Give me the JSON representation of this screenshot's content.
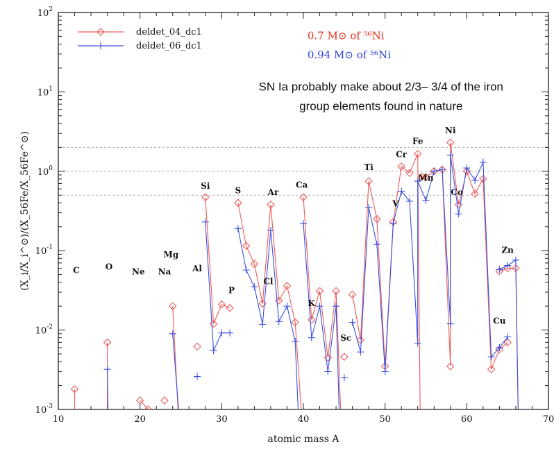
{
  "chart_data": {
    "type": "line",
    "xlabel": "atomic mass A",
    "ylabel": "(X_i/X_i^⊙)/(X_56Fe/X_56Fe^⊙)",
    "xlim": [
      10,
      70
    ],
    "ylim": [
      0.001,
      100
    ],
    "yscale": "log",
    "x_ticks": [
      "10",
      "20",
      "30",
      "40",
      "50",
      "60",
      "70"
    ],
    "y_ticks": [
      {
        "value": 0.001,
        "base": "10",
        "exp": "-3"
      },
      {
        "value": 0.01,
        "base": "10",
        "exp": "-2"
      },
      {
        "value": 0.1,
        "base": "10",
        "exp": "-1"
      },
      {
        "value": 1,
        "base": "10",
        "exp": "0"
      },
      {
        "value": 10,
        "base": "10",
        "exp": "1"
      },
      {
        "value": 100,
        "base": "10",
        "exp": "2"
      }
    ],
    "reference_lines": [
      0.5,
      1,
      2
    ],
    "legend": {
      "placement": "top-left",
      "entries": [
        {
          "name": "deldet_04_dc1",
          "color": "#ee5a5a",
          "marker": "diamond"
        },
        {
          "name": "deldet_06_dc1",
          "color": "#3a4fe0",
          "marker": "plus"
        }
      ]
    },
    "annotations": [
      {
        "text": "0.7 M⊙ of ⁵⁶Ni",
        "color": "#e5301c",
        "pos": [
          40.5,
          46
        ]
      },
      {
        "text": "0.94 M⊙ of ⁵⁶Ni",
        "color": "#2a3fd9",
        "pos": [
          40.5,
          26.5
        ]
      },
      {
        "text": "SN Ia probably make about 2/3– 3/4 of the iron",
        "color": "#111111",
        "pos": [
          49.5,
          10.4
        ]
      },
      {
        "text": "group elements found in nature",
        "color": "#111111",
        "pos": [
          49.5,
          5.9
        ]
      }
    ],
    "element_labels": [
      {
        "text": "C",
        "x": 12.2,
        "y": 0.052
      },
      {
        "text": "O",
        "x": 16.2,
        "y": 0.058
      },
      {
        "text": "Ne",
        "x": 19.8,
        "y": 0.05
      },
      {
        "text": "Na",
        "x": 23.0,
        "y": 0.05
      },
      {
        "text": "Mg",
        "x": 23.8,
        "y": 0.082
      },
      {
        "text": "Al",
        "x": 27.0,
        "y": 0.055
      },
      {
        "text": "Si",
        "x": 28.0,
        "y": 0.6
      },
      {
        "text": "P",
        "x": 31.2,
        "y": 0.029
      },
      {
        "text": "S",
        "x": 32.0,
        "y": 0.53
      },
      {
        "text": "Cl",
        "x": 35.7,
        "y": 0.038
      },
      {
        "text": "Ar",
        "x": 36.3,
        "y": 0.5
      },
      {
        "text": "K",
        "x": 41.0,
        "y": 0.02
      },
      {
        "text": "Ca",
        "x": 39.8,
        "y": 0.62
      },
      {
        "text": "Sc",
        "x": 45.2,
        "y": 0.0073
      },
      {
        "text": "Ti",
        "x": 48.0,
        "y": 1.04
      },
      {
        "text": "V",
        "x": 51.3,
        "y": 0.36
      },
      {
        "text": "Cr",
        "x": 52.0,
        "y": 1.5
      },
      {
        "text": "Fe",
        "x": 54.0,
        "y": 2.2
      },
      {
        "text": "Mn",
        "x": 55.0,
        "y": 0.76
      },
      {
        "text": "Ni",
        "x": 58.0,
        "y": 3.0
      },
      {
        "text": "Co",
        "x": 58.8,
        "y": 0.5
      },
      {
        "text": "Cu",
        "x": 64.0,
        "y": 0.012
      },
      {
        "text": "Zn",
        "x": 65.0,
        "y": 0.094
      }
    ],
    "series": [
      {
        "name": "deldet_04_dc1",
        "color": "#ee5a5a",
        "marker": "diamond",
        "segments": [
          [
            [
              12,
              0.0018
            ],
            [
              12,
              0.0008
            ]
          ],
          [
            [
              16,
              0.007
            ],
            [
              16,
              0.0008
            ]
          ],
          [
            [
              20,
              0.0013
            ],
            [
              21,
              0.001
            ],
            [
              21.2,
              0.0008
            ]
          ],
          [
            [
              23,
              0.0013
            ]
          ],
          [
            [
              24,
              0.02
            ],
            [
              24.7,
              0.0008
            ]
          ],
          [
            [
              27,
              0.0062
            ]
          ],
          [
            [
              28,
              0.47
            ],
            [
              29,
              0.012
            ],
            [
              30,
              0.021
            ],
            [
              31,
              0.019
            ]
          ],
          [
            [
              32,
              0.4
            ],
            [
              33,
              0.115
            ],
            [
              34,
              0.068
            ],
            [
              35,
              0.0215
            ],
            [
              36,
              0.38
            ],
            [
              37,
              0.0235
            ],
            [
              38,
              0.036
            ],
            [
              39,
              0.0125
            ],
            [
              39.8,
              0.0008
            ]
          ],
          [
            [
              40,
              0.47
            ],
            [
              41,
              0.0135
            ],
            [
              42,
              0.031
            ],
            [
              43,
              0.0045
            ],
            [
              44,
              0.031
            ],
            [
              44.6,
              0.0008
            ]
          ],
          [
            [
              45,
              0.0046
            ]
          ],
          [
            [
              46,
              0.028
            ],
            [
              47,
              0.0075
            ],
            [
              48,
              0.75
            ],
            [
              49,
              0.25
            ],
            [
              50,
              0.0035
            ],
            [
              51,
              0.23
            ],
            [
              52,
              1.15
            ],
            [
              53,
              0.95
            ],
            [
              54,
              1.65
            ],
            [
              54.3,
              0.0008
            ]
          ],
          [
            [
              54.5,
              0.85
            ],
            [
              55,
              0.85
            ],
            [
              56,
              1.0
            ],
            [
              57,
              1.05
            ],
            [
              58,
              0.0035
            ],
            [
              58,
              2.3
            ],
            [
              59,
              0.38
            ],
            [
              60,
              1.0
            ],
            [
              61,
              0.52
            ],
            [
              62,
              0.8
            ],
            [
              63,
              0.0032
            ],
            [
              64,
              0.0057
            ],
            [
              65,
              0.007
            ]
          ],
          [
            [
              64,
              0.055
            ],
            [
              65,
              0.06
            ],
            [
              66,
              0.06
            ],
            [
              66.3,
              0.0008
            ]
          ]
        ]
      },
      {
        "name": "deldet_06_dc1",
        "color": "#3a4fe0",
        "marker": "plus",
        "segments": [
          [
            [
              16,
              0.0032
            ],
            [
              16.1,
              0.0008
            ]
          ],
          [
            [
              24,
              0.009
            ],
            [
              24.8,
              0.0008
            ]
          ],
          [
            [
              27,
              0.0026
            ]
          ],
          [
            [
              28,
              0.23
            ],
            [
              29,
              0.0055
            ],
            [
              30,
              0.0092
            ],
            [
              31,
              0.0092
            ]
          ],
          [
            [
              32,
              0.19
            ],
            [
              33,
              0.057
            ],
            [
              34,
              0.035
            ],
            [
              35,
              0.0118
            ],
            [
              36,
              0.18
            ],
            [
              37,
              0.0128
            ],
            [
              38,
              0.02
            ],
            [
              39,
              0.0072
            ],
            [
              39.4,
              0.0008
            ]
          ],
          [
            [
              40,
              0.22
            ],
            [
              41,
              0.008
            ],
            [
              42,
              0.02
            ],
            [
              43,
              0.003
            ],
            [
              44,
              0.02
            ],
            [
              44.4,
              0.0008
            ]
          ],
          [
            [
              45,
              0.0025
            ]
          ],
          [
            [
              46,
              0.0125
            ],
            [
              47,
              0.0053
            ],
            [
              48,
              0.35
            ],
            [
              49,
              0.12
            ],
            [
              50,
              0.003
            ],
            [
              51,
              0.22
            ],
            [
              52,
              0.56
            ],
            [
              53,
              0.42
            ],
            [
              54,
              0.0068
            ],
            [
              54,
              0.75
            ],
            [
              55,
              0.43
            ],
            [
              56,
              1.0
            ],
            [
              57,
              1.05
            ],
            [
              58,
              0.012
            ],
            [
              58,
              1.6
            ],
            [
              59,
              0.29
            ],
            [
              60,
              1.1
            ],
            [
              61,
              0.77
            ],
            [
              62,
              1.3
            ],
            [
              63,
              0.0046
            ],
            [
              64,
              0.006
            ],
            [
              65,
              0.0082
            ]
          ],
          [
            [
              64,
              0.058
            ],
            [
              65,
              0.065
            ],
            [
              66,
              0.076
            ],
            [
              66.3,
              0.0008
            ]
          ]
        ]
      }
    ]
  }
}
